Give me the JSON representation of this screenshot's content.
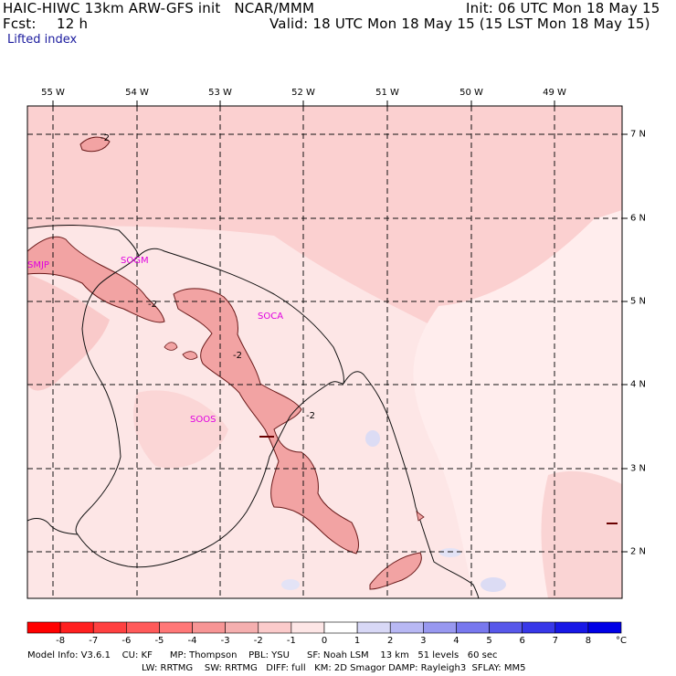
{
  "header": {
    "title": "HAIC-HIWC 13km ARW-GFS init   NCAR/MMM",
    "init": "Init: 06 UTC Mon 18 May 15",
    "fcst_label": "Fcst:",
    "fcst_value": "12 h",
    "valid": "Valid: 18 UTC Mon 18 May 15 (15 LST Mon 18 May 15)",
    "field": "Lifted index"
  },
  "map": {
    "lon_labels": [
      "55 W",
      "54 W",
      "53 W",
      "52 W",
      "51 W",
      "50 W",
      "49 W"
    ],
    "lat_labels": [
      "7 N",
      "6 N",
      "5 N",
      "4 N",
      "3 N",
      "2 N"
    ],
    "stations": [
      "SMJP",
      "SOGM",
      "SOCA",
      "SOOS"
    ],
    "contour_label": "-2"
  },
  "colorbar": {
    "labels": [
      "-8",
      "-7",
      "-6",
      "-5",
      "-4",
      "-3",
      "-2",
      "-1",
      "0",
      "1",
      "2",
      "3",
      "4",
      "5",
      "6",
      "7",
      "8"
    ],
    "unit": "°C",
    "colors": [
      "#ff0000",
      "#ff2020",
      "#ff4040",
      "#ff5a5a",
      "#ff7878",
      "#f79595",
      "#f5afaf",
      "#fbcbcb",
      "#fde6e6",
      "#ffffff",
      "#d8d8f6",
      "#b8b8f4",
      "#9898f0",
      "#7878ee",
      "#5858ea",
      "#3838e8",
      "#1818e6",
      "#0000e6"
    ]
  },
  "footer": {
    "line1": "Model Info: V3.6.1    CU: KF      MP: Thompson    PBL: YSU      SF: Noah LSM    13 km   51 levels   60 sec",
    "line2": "LW: RRTMG    SW: RRTMG   DIFF: full   KM: 2D Smagor DAMP: Rayleigh3  SFLAY: MM5"
  }
}
